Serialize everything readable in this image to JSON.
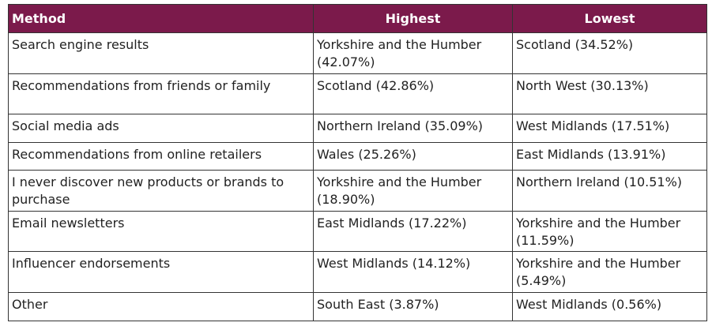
{
  "table": {
    "header": [
      "Method",
      "Highest",
      "Lowest"
    ],
    "rows": [
      [
        "Search engine results",
        "Yorkshire and the Humber (42.07%)",
        "Scotland (34.52%)"
      ],
      [
        "Recommendations from friends or family",
        "Scotland (42.86%)",
        "North West (30.13%)"
      ],
      [
        "Social media ads",
        "Northern Ireland (35.09%)",
        "West Midlands (17.51%)"
      ],
      [
        "Recommendations from online retailers",
        "Wales (25.26%)",
        "East Midlands (13.91%)"
      ],
      [
        "I never discover new products or brands to purchase",
        "Yorkshire and the Humber (18.90%)",
        "Northern Ireland (10.51%)"
      ],
      [
        "Email newsletters",
        "East Midlands (17.22%)",
        "Yorkshire and the Humber (11.59%)"
      ],
      [
        "Influencer endorsements",
        "West Midlands (14.12%)",
        "Yorkshire and the Humber (5.49%)"
      ],
      [
        "Other",
        "South East (3.87%)",
        "West Midlands (0.56%)"
      ]
    ]
  }
}
